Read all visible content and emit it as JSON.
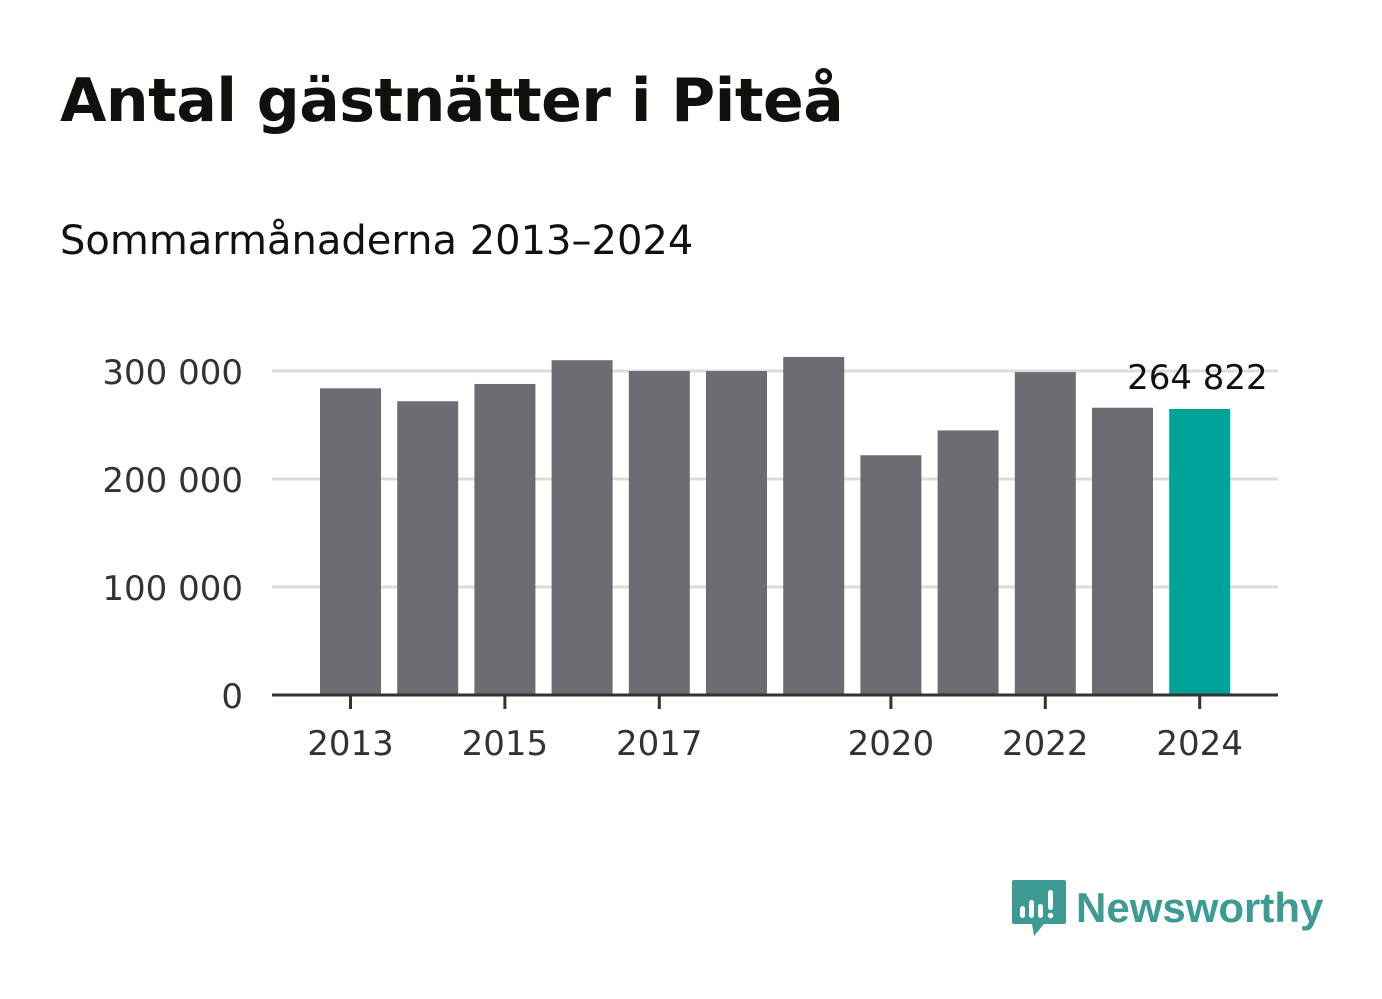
{
  "header": {
    "title": "Antal gästnätter i Piteå",
    "subtitle": "Sommarmånaderna 2013–2024"
  },
  "colors": {
    "bar": "#6d6c72",
    "highlight": "#00a398",
    "grid": "#dcdcdc",
    "axis": "#333333",
    "brand": "#3d9b94"
  },
  "logo": {
    "icon": "newsworthy-chart-bubble-icon",
    "text": "Newsworthy"
  },
  "chart_data": {
    "type": "bar",
    "title": "Antal gästnätter i Piteå",
    "subtitle": "Sommarmånaderna 2013–2024",
    "xlabel": "",
    "ylabel": "",
    "categories": [
      "2013",
      "2014",
      "2015",
      "2016",
      "2017",
      "2018",
      "2019",
      "2020",
      "2021",
      "2022",
      "2023",
      "2024"
    ],
    "values": [
      284000,
      272000,
      288000,
      310000,
      300000,
      300000,
      313000,
      222000,
      245000,
      299000,
      266000,
      264822
    ],
    "highlight_index": 11,
    "highlight_label": "264 822",
    "ylim": [
      0,
      300000
    ],
    "yticks": [
      0,
      100000,
      200000,
      300000
    ],
    "ytick_labels": [
      "0",
      "100 000",
      "200 000",
      "300 000"
    ],
    "xtick_labels": [
      "2013",
      "2015",
      "2017",
      "2020",
      "2022",
      "2024"
    ],
    "grid": true
  }
}
